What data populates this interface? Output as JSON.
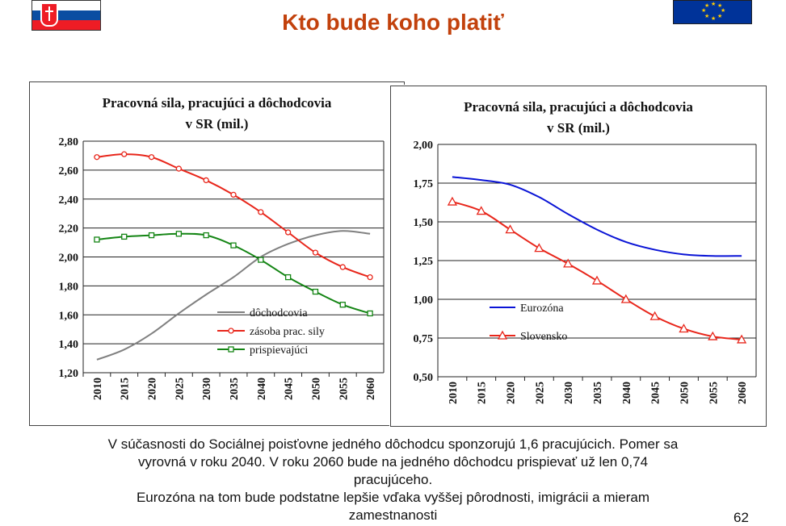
{
  "slide": {
    "title": "Kto bude koho platiť",
    "caption_line1": "V súčasnosti do Sociálnej poisťovne jedného dôchodcu sponzorujú 1,6 pracujúcich. Pomer sa",
    "caption_line2": "vyrovná v roku 2040. V roku 2060 bude na jedného dôchodcu prispievať už len 0,74",
    "caption_line3": "pracujúceho.",
    "caption_line4": "Eurozóna na tom bude podstatne lepšie vďaka vyššej pôrodnosti, imigrácii a mieram",
    "caption_line5": "zamestnanosti",
    "page_number": "62"
  },
  "flags": {
    "left": "slovakia-flag",
    "right": "eu-flag"
  },
  "chart_data": [
    {
      "type": "line",
      "title": "Pracovná sila, pracujúci a dôchodcovia",
      "subtitle": "v SR (mil.)",
      "xlabel": "",
      "ylabel": "",
      "ylim": [
        1.2,
        2.8
      ],
      "yticks": [
        "1,20",
        "1,40",
        "1,60",
        "1,80",
        "2,00",
        "2,20",
        "2,40",
        "2,60",
        "2,80"
      ],
      "x": [
        "2010",
        "2015",
        "2020",
        "2025",
        "2030",
        "2035",
        "2040",
        "2045",
        "2050",
        "2055",
        "2060"
      ],
      "grid": "horizontal",
      "legend_position": "bottom-right",
      "series": [
        {
          "name": "dôchodcovia",
          "color": "#808080",
          "marker": "none",
          "values": [
            1.29,
            1.36,
            1.47,
            1.61,
            1.74,
            1.86,
            2.0,
            2.09,
            2.15,
            2.18,
            2.16
          ]
        },
        {
          "name": "zásoba prac. sily",
          "color": "#e8261b",
          "marker": "circle",
          "values": [
            2.69,
            2.71,
            2.69,
            2.61,
            2.53,
            2.43,
            2.31,
            2.17,
            2.03,
            1.93,
            1.86
          ]
        },
        {
          "name": "prispievajúci",
          "color": "#148514",
          "marker": "square",
          "values": [
            2.12,
            2.14,
            2.15,
            2.16,
            2.15,
            2.08,
            1.98,
            1.86,
            1.76,
            1.67,
            1.61
          ]
        }
      ]
    },
    {
      "type": "line",
      "title": "Pracovná sila, pracujúci a dôchodcovia",
      "subtitle": "v SR (mil.)",
      "xlabel": "",
      "ylabel": "",
      "ylim": [
        0.5,
        2.0
      ],
      "yticks": [
        "0,50",
        "0,75",
        "1,00",
        "1,25",
        "1,50",
        "1,75",
        "2,00"
      ],
      "x": [
        "2010",
        "2015",
        "2020",
        "2025",
        "2030",
        "2035",
        "2040",
        "2045",
        "2050",
        "2055",
        "2060"
      ],
      "grid": "horizontal",
      "legend_position": "bottom-left",
      "series": [
        {
          "name": "Eurozóna",
          "color": "#0a14d6",
          "marker": "none",
          "values": [
            1.79,
            1.77,
            1.74,
            1.66,
            1.55,
            1.45,
            1.37,
            1.32,
            1.29,
            1.28,
            1.28
          ]
        },
        {
          "name": "Slovensko",
          "color": "#e8261b",
          "marker": "triangle",
          "values": [
            1.63,
            1.57,
            1.45,
            1.33,
            1.23,
            1.12,
            1.0,
            0.89,
            0.81,
            0.76,
            0.74
          ]
        }
      ]
    }
  ]
}
